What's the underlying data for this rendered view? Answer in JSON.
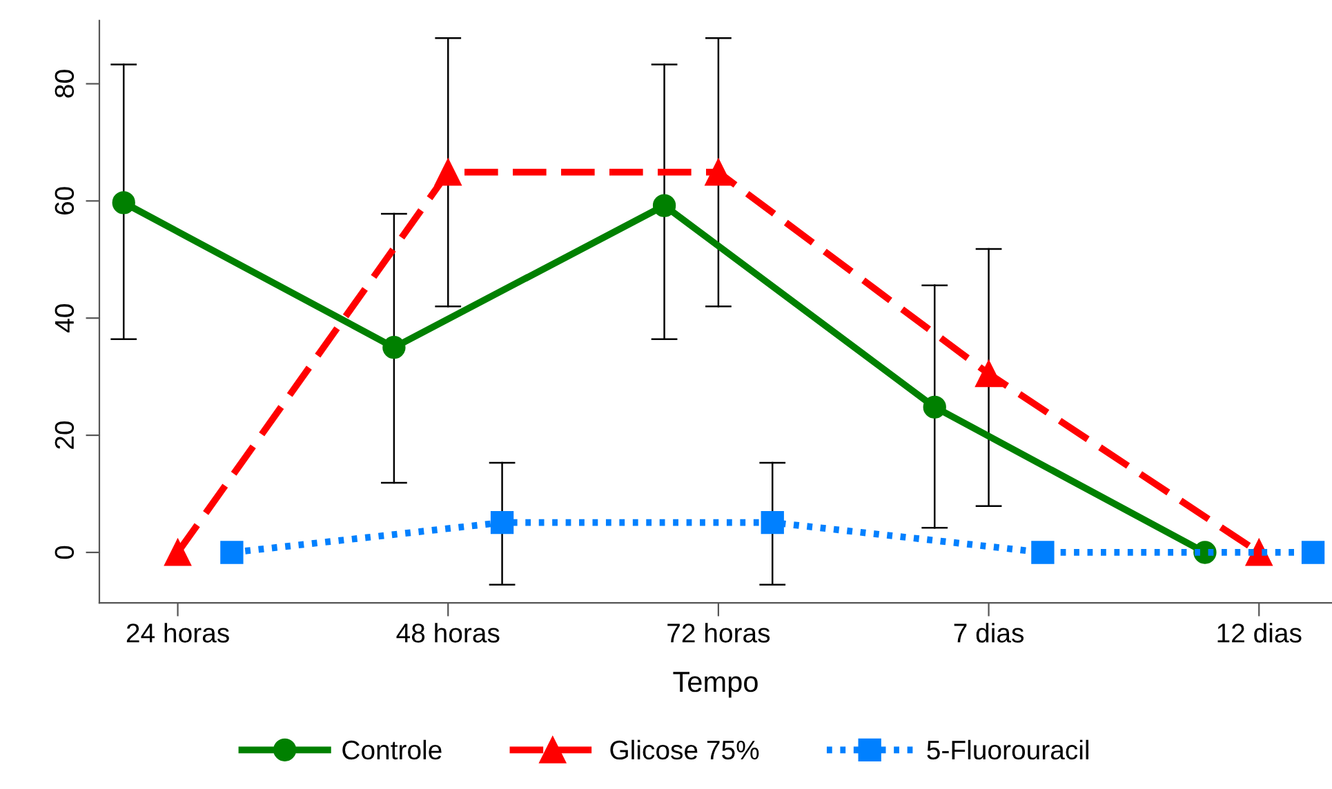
{
  "chart_data": {
    "type": "line",
    "xlabel": "Tempo",
    "categories": [
      "24 horas",
      "48 horas",
      "72 horas",
      "7 dias",
      "12 dias"
    ],
    "ylim": [
      -8.6,
      90.8
    ],
    "yticks": [
      0,
      20,
      40,
      60,
      80
    ],
    "grid": false,
    "legend": "bottom",
    "series": [
      {
        "name": "Controle",
        "color": "#008000",
        "marker": "circle",
        "line_style": "solid",
        "values": [
          59.7,
          35,
          59.2,
          24.8,
          0
        ],
        "errors": [
          [
            36.4,
            83.3
          ],
          [
            11.9,
            57.8
          ],
          [
            36.4,
            83.3
          ],
          [
            4.2,
            45.6
          ],
          null
        ]
      },
      {
        "name": "Glicose 75%",
        "color": "#ff0000",
        "marker": "triangle",
        "line_style": "dashed",
        "values": [
          0,
          64.9,
          64.9,
          30.5,
          0
        ],
        "errors": [
          null,
          [
            42.0,
            87.8
          ],
          [
            42.0,
            87.8
          ],
          [
            7.9,
            51.8
          ],
          null
        ]
      },
      {
        "name": "5-Fluorouracil",
        "color": "#0080ff",
        "marker": "square",
        "line_style": "dotted",
        "values": [
          0,
          5.1,
          5.1,
          0,
          0
        ],
        "errors": [
          null,
          [
            -5.5,
            15.3
          ],
          [
            -5.5,
            15.3
          ],
          null,
          null
        ]
      }
    ]
  }
}
